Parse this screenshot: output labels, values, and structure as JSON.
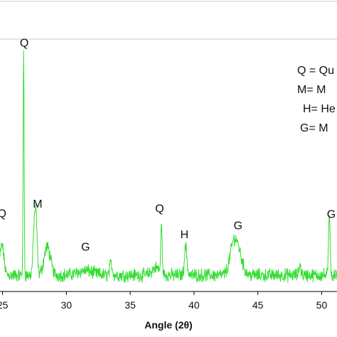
{
  "chart_data": {
    "type": "line",
    "title": "",
    "xlabel": "Angle (2θ)",
    "ylabel": "",
    "xlim": [
      24.8,
      51.2
    ],
    "ylim": [
      0,
      340
    ],
    "x_ticks": [
      25,
      30,
      35,
      40,
      45,
      50
    ],
    "x_tick_labels": [
      "25",
      "30",
      "35",
      "40",
      "45",
      "50"
    ],
    "grid": false,
    "line_color": "#33dd33",
    "baseline": 22,
    "noise": 7,
    "series": [
      {
        "name": "",
        "peaks": [
          {
            "x": 26.65,
            "height": 300,
            "width": 0.04
          },
          {
            "x": 27.5,
            "height": 72,
            "width": 0.1
          },
          {
            "x": 27.65,
            "height": 55,
            "width": 0.08
          },
          {
            "x": 28.5,
            "height": 38,
            "width": 0.25
          },
          {
            "x": 24.95,
            "height": 40,
            "width": 0.15
          },
          {
            "x": 31.5,
            "height": 6,
            "width": 0.6
          },
          {
            "x": 33.5,
            "height": 16,
            "width": 0.1
          },
          {
            "x": 37.0,
            "height": 10,
            "width": 0.3
          },
          {
            "x": 37.45,
            "height": 70,
            "width": 0.05
          },
          {
            "x": 39.35,
            "height": 38,
            "width": 0.1
          },
          {
            "x": 43.35,
            "height": 40,
            "width": 0.35
          },
          {
            "x": 43.0,
            "height": 18,
            "width": 0.25
          },
          {
            "x": 48.3,
            "height": 14,
            "width": 0.08
          },
          {
            "x": 50.6,
            "height": 85,
            "width": 0.06
          }
        ]
      }
    ],
    "annotations": [
      {
        "text": "Q",
        "x": 26.7,
        "y": 330
      },
      {
        "text": "Q",
        "x": 24.95,
        "y": 100
      },
      {
        "text": "M",
        "x": 27.75,
        "y": 113
      },
      {
        "text": "G",
        "x": 31.5,
        "y": 55
      },
      {
        "text": "Q",
        "x": 37.3,
        "y": 107
      },
      {
        "text": "H",
        "x": 39.25,
        "y": 72
      },
      {
        "text": "G",
        "x": 43.45,
        "y": 84
      },
      {
        "text": "G",
        "x": 50.75,
        "y": 99
      }
    ],
    "legend": {
      "placement": "top-right",
      "entries": [
        "Q = Qu",
        "M= M",
        "H= He",
        "G=  M"
      ]
    }
  }
}
